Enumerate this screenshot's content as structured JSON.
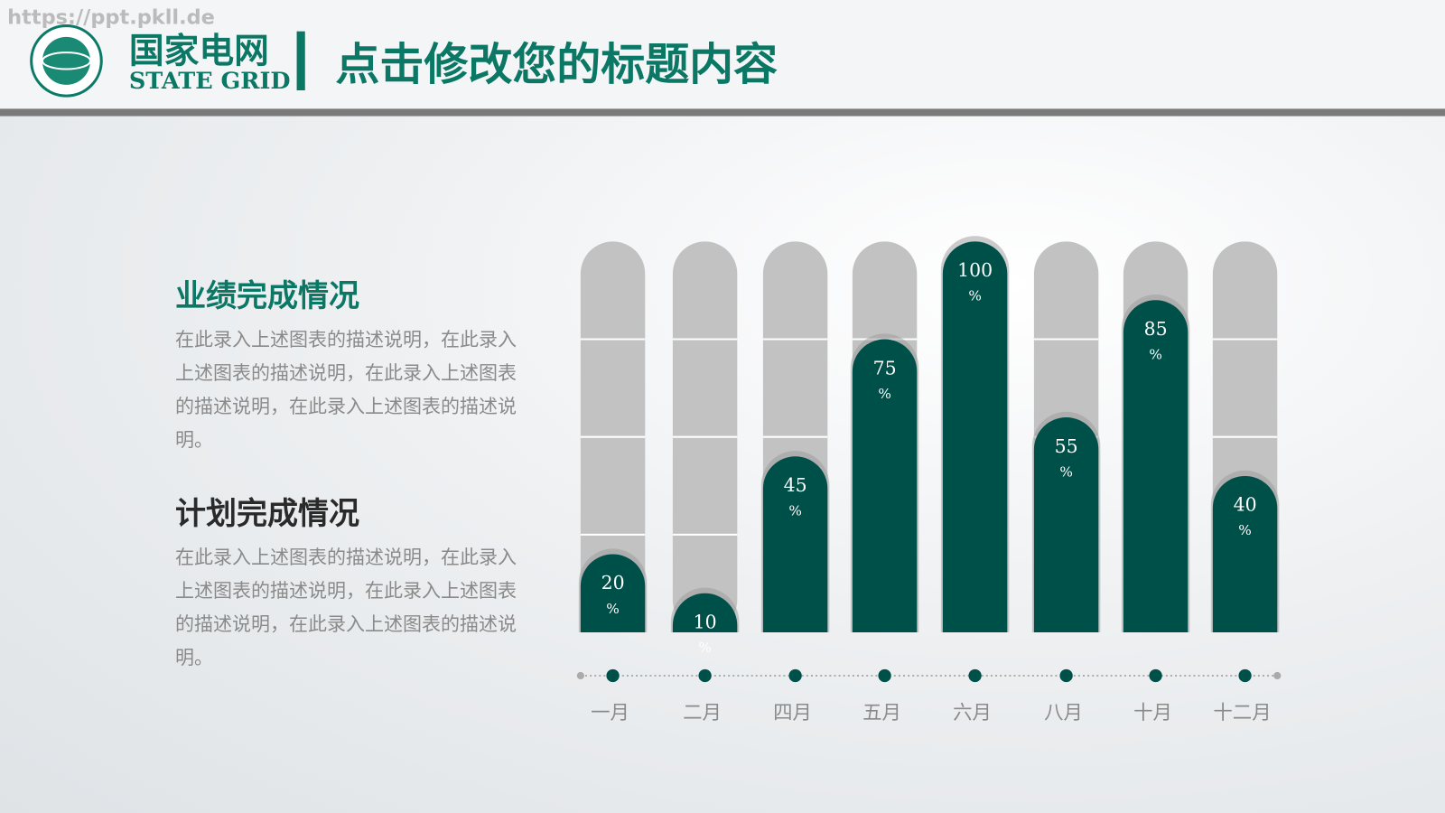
{
  "watermark": "https://ppt.pkll.de",
  "logo": {
    "name_cn": "国家电网",
    "name_en": "STATE GRID"
  },
  "header": {
    "title": "点击修改您的标题内容"
  },
  "sections": [
    {
      "heading": "业绩完成情况",
      "text": "在此录入上述图表的描述说明，在此录入上述图表的描述说明，在此录入上述图表的描述说明，在此录入上述图表的描述说明。"
    },
    {
      "heading": "计划完成情况",
      "text": "在此录入上述图表的描述说明，在此录入上述图表的描述说明，在此录入上述图表的描述说明，在此录入上述图表的描述说明。"
    }
  ],
  "chart_data": {
    "type": "bar",
    "categories": [
      "一月",
      "二月",
      "四月",
      "五月",
      "六月",
      "八月",
      "十月",
      "十二月"
    ],
    "values": [
      20,
      10,
      45,
      75,
      100,
      55,
      85,
      40
    ],
    "value_labels": [
      "20\n%",
      "10\n%",
      "45\n%",
      "75\n%",
      "100\n%",
      "55\n%",
      "85\n%",
      "40\n%"
    ],
    "color": "#00504a",
    "track_color": "#c2c2c2",
    "ylim": [
      0,
      100
    ],
    "yticks": [
      0,
      25,
      50,
      75,
      100
    ],
    "grid": true
  }
}
